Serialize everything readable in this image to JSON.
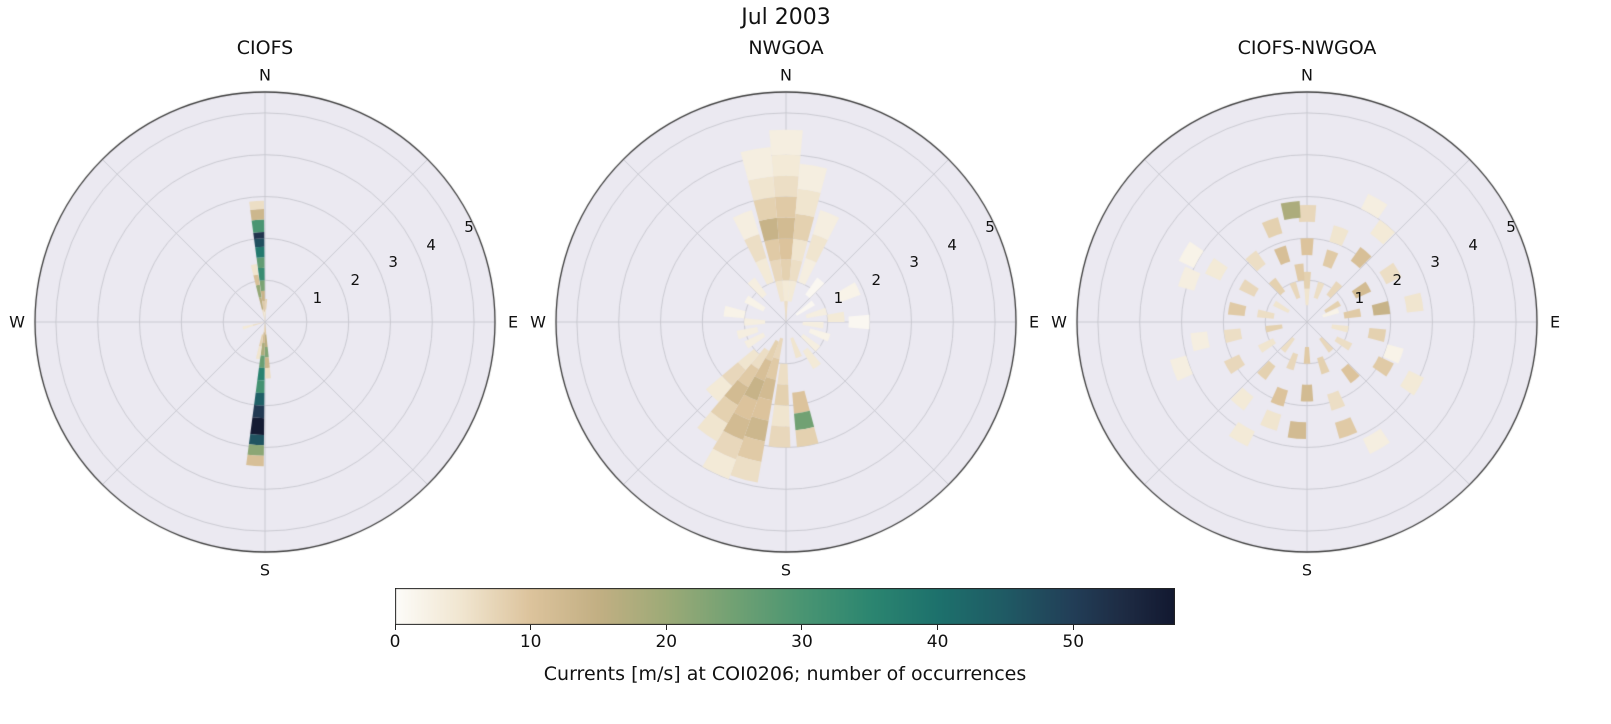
{
  "title": "Jul 2003",
  "axes_facecolor": "#ebe9f1",
  "grid_color": "#c6c6ce",
  "axes_edgecolor": "#3a3a3a",
  "colorbar": {
    "label": "Currents [m/s] at COI0206; number of occurrences",
    "ticks": [
      0,
      10,
      20,
      30,
      40,
      50
    ],
    "vmin": 0,
    "vmax": 57.5,
    "colormap_stops": [
      [
        0,
        "#fdfcf9"
      ],
      [
        5,
        "#f0e5cf"
      ],
      [
        10,
        "#dcc39c"
      ],
      [
        15,
        "#c2af83"
      ],
      [
        20,
        "#9daa77"
      ],
      [
        25,
        "#71a173"
      ],
      [
        30,
        "#4a9572"
      ],
      [
        35,
        "#2c8670"
      ],
      [
        40,
        "#1d716c"
      ],
      [
        45,
        "#1f5a64"
      ],
      [
        50,
        "#223e57"
      ],
      [
        54,
        "#1d2a42"
      ],
      [
        57.5,
        "#121830"
      ]
    ]
  },
  "chart_data": [
    {
      "type": "heatmap",
      "projection": "polar",
      "subtype": "current-rose-histogram",
      "title": "CIOFS",
      "compass_labels": [
        "N",
        "E",
        "S",
        "W"
      ],
      "radial_ticks": [
        1,
        2,
        3,
        4,
        5
      ],
      "rmax": 5.5,
      "cell_format": [
        "direction_deg_from_north",
        "width_deg",
        "r0_speed",
        "r1_speed",
        "occurrences"
      ],
      "cells": [
        [
          356,
          7,
          0,
          0.25,
          4
        ],
        [
          356,
          7,
          0.25,
          0.5,
          9
        ],
        [
          356,
          7,
          0.5,
          0.75,
          14
        ],
        [
          356,
          7,
          0.75,
          1.0,
          24
        ],
        [
          356,
          7,
          1.0,
          1.3,
          33
        ],
        [
          356,
          7,
          1.3,
          1.55,
          27
        ],
        [
          356,
          7,
          1.55,
          1.8,
          38
        ],
        [
          356,
          7,
          1.8,
          2.0,
          47
        ],
        [
          356,
          7,
          2.0,
          2.15,
          52
        ],
        [
          356,
          7,
          2.15,
          2.45,
          30
        ],
        [
          356,
          7,
          2.45,
          2.7,
          13
        ],
        [
          356,
          7,
          2.7,
          2.9,
          6
        ],
        [
          349,
          6,
          0,
          0.3,
          6
        ],
        [
          349,
          6,
          0.3,
          0.6,
          16
        ],
        [
          349,
          6,
          0.6,
          0.9,
          21
        ],
        [
          349,
          6,
          0.9,
          1.15,
          11
        ],
        [
          349,
          6,
          1.15,
          1.4,
          5
        ],
        [
          3,
          5,
          0,
          0.3,
          5
        ],
        [
          3,
          5,
          0.3,
          0.55,
          8
        ],
        [
          184,
          7,
          0,
          0.25,
          7
        ],
        [
          184,
          7,
          0.25,
          0.5,
          12
        ],
        [
          184,
          7,
          0.5,
          0.8,
          18
        ],
        [
          184,
          7,
          0.8,
          1.1,
          26
        ],
        [
          184,
          7,
          1.1,
          1.4,
          36
        ],
        [
          184,
          7,
          1.4,
          1.7,
          31
        ],
        [
          184,
          7,
          1.7,
          2.0,
          44
        ],
        [
          184,
          7,
          2.0,
          2.3,
          51
        ],
        [
          184,
          7,
          2.3,
          2.7,
          57
        ],
        [
          184,
          7,
          2.7,
          2.95,
          46
        ],
        [
          184,
          7,
          2.95,
          3.2,
          22
        ],
        [
          184,
          7,
          3.2,
          3.45,
          11
        ],
        [
          177,
          6,
          0,
          0.3,
          9
        ],
        [
          177,
          6,
          0.3,
          0.6,
          16
        ],
        [
          177,
          6,
          0.6,
          0.85,
          23
        ],
        [
          177,
          6,
          0.85,
          1.1,
          13
        ],
        [
          177,
          6,
          1.1,
          1.35,
          6
        ],
        [
          191,
          6,
          0.3,
          0.6,
          8
        ],
        [
          191,
          6,
          0.6,
          0.9,
          5
        ],
        [
          255,
          8,
          0,
          0.3,
          6
        ],
        [
          255,
          8,
          0.3,
          0.55,
          4
        ]
      ]
    },
    {
      "type": "heatmap",
      "projection": "polar",
      "subtype": "current-rose-histogram",
      "title": "NWGOA",
      "compass_labels": [
        "N",
        "E",
        "S",
        "W"
      ],
      "radial_ticks": [
        1,
        2,
        3,
        4,
        5
      ],
      "rmax": 5.5,
      "cell_format": [
        "direction_deg_from_north",
        "width_deg",
        "r0_speed",
        "r1_speed",
        "occurrences"
      ],
      "cells": [
        [
          0,
          10,
          0,
          0.5,
          6
        ],
        [
          0,
          10,
          0.5,
          1.0,
          4
        ],
        [
          0,
          10,
          1.0,
          1.5,
          8
        ],
        [
          0,
          10,
          1.5,
          2.0,
          10
        ],
        [
          0,
          10,
          2.0,
          2.5,
          12
        ],
        [
          0,
          10,
          2.5,
          3.0,
          9
        ],
        [
          0,
          10,
          3.0,
          3.5,
          6
        ],
        [
          0,
          10,
          3.5,
          4.0,
          4
        ],
        [
          0,
          10,
          4.0,
          4.6,
          3
        ],
        [
          350,
          10,
          0.5,
          1.0,
          5
        ],
        [
          350,
          10,
          1.0,
          1.5,
          7
        ],
        [
          350,
          10,
          1.5,
          2.0,
          9
        ],
        [
          350,
          10,
          2.0,
          2.5,
          14
        ],
        [
          350,
          10,
          2.5,
          3.0,
          8
        ],
        [
          350,
          10,
          3.0,
          3.5,
          5
        ],
        [
          350,
          10,
          3.5,
          4.2,
          3
        ],
        [
          10,
          10,
          0.5,
          1.0,
          4
        ],
        [
          10,
          10,
          1.0,
          1.5,
          6
        ],
        [
          10,
          10,
          1.5,
          2.0,
          5
        ],
        [
          10,
          10,
          2.0,
          2.6,
          8
        ],
        [
          10,
          10,
          2.6,
          3.2,
          5
        ],
        [
          10,
          10,
          3.2,
          3.8,
          3
        ],
        [
          338,
          10,
          1.0,
          1.6,
          4
        ],
        [
          338,
          10,
          1.6,
          2.2,
          6
        ],
        [
          338,
          10,
          2.2,
          2.8,
          3
        ],
        [
          22,
          10,
          1.0,
          1.6,
          3
        ],
        [
          22,
          10,
          1.6,
          2.2,
          5
        ],
        [
          22,
          10,
          2.2,
          2.8,
          3
        ],
        [
          75,
          10,
          0.5,
          1.0,
          3
        ],
        [
          85,
          10,
          1.0,
          1.4,
          4
        ],
        [
          95,
          10,
          0.4,
          0.9,
          3
        ],
        [
          65,
          10,
          1.4,
          1.9,
          2
        ],
        [
          110,
          10,
          0.6,
          1.1,
          2
        ],
        [
          55,
          10,
          0.3,
          0.8,
          1
        ],
        [
          90,
          10,
          1.5,
          2.0,
          1
        ],
        [
          40,
          10,
          0.8,
          1.3,
          1
        ],
        [
          130,
          10,
          0.5,
          1.0,
          3
        ],
        [
          145,
          10,
          0.8,
          1.3,
          4
        ],
        [
          160,
          10,
          0.4,
          0.9,
          5
        ],
        [
          170,
          10,
          1.7,
          2.2,
          10
        ],
        [
          170,
          10,
          2.2,
          2.6,
          25
        ],
        [
          170,
          10,
          2.6,
          3.0,
          8
        ],
        [
          183,
          10,
          1.0,
          1.5,
          6
        ],
        [
          183,
          10,
          1.5,
          2.0,
          8
        ],
        [
          183,
          10,
          2.0,
          2.5,
          5
        ],
        [
          183,
          10,
          2.5,
          3.0,
          7
        ],
        [
          195,
          10,
          0.4,
          0.9,
          7
        ],
        [
          195,
          10,
          0.9,
          1.4,
          9
        ],
        [
          195,
          10,
          1.4,
          1.9,
          12
        ],
        [
          195,
          10,
          1.9,
          2.4,
          10
        ],
        [
          195,
          10,
          2.4,
          2.9,
          13
        ],
        [
          195,
          10,
          2.9,
          3.4,
          9
        ],
        [
          195,
          10,
          3.4,
          3.9,
          6
        ],
        [
          205,
          10,
          0.5,
          1.0,
          8
        ],
        [
          205,
          10,
          1.0,
          1.5,
          11
        ],
        [
          205,
          10,
          1.5,
          2.0,
          14
        ],
        [
          205,
          10,
          2.0,
          2.5,
          10
        ],
        [
          205,
          10,
          2.5,
          3.0,
          12
        ],
        [
          205,
          10,
          3.0,
          3.5,
          7
        ],
        [
          205,
          10,
          3.5,
          4.0,
          4
        ],
        [
          215,
          10,
          0.8,
          1.3,
          6
        ],
        [
          215,
          10,
          1.3,
          1.8,
          9
        ],
        [
          215,
          10,
          1.8,
          2.3,
          12
        ],
        [
          215,
          10,
          2.3,
          2.8,
          8
        ],
        [
          215,
          10,
          2.8,
          3.3,
          5
        ],
        [
          225,
          10,
          1.0,
          1.5,
          5
        ],
        [
          225,
          10,
          1.5,
          2.0,
          7
        ],
        [
          225,
          10,
          2.0,
          2.5,
          4
        ],
        [
          240,
          10,
          0.6,
          1.1,
          3
        ],
        [
          255,
          10,
          0.7,
          1.2,
          3
        ],
        [
          270,
          10,
          0.5,
          1.0,
          3
        ],
        [
          280,
          10,
          1.0,
          1.5,
          2
        ],
        [
          300,
          10,
          0.6,
          1.1,
          2
        ],
        [
          320,
          10,
          0.8,
          1.3,
          3
        ]
      ]
    },
    {
      "type": "heatmap",
      "projection": "polar",
      "subtype": "current-rose-histogram",
      "title": "CIOFS-NWGOA",
      "compass_labels": [
        "N",
        "E",
        "S",
        "W"
      ],
      "radial_ticks": [
        1,
        2,
        3,
        4,
        5
      ],
      "rmax": 5.5,
      "cell_format": [
        "direction_deg_from_north",
        "width_deg",
        "r0_speed",
        "r1_speed",
        "occurrences"
      ],
      "cells": [
        [
          0,
          9,
          0.4,
          0.8,
          5
        ],
        [
          0,
          9,
          0.8,
          1.2,
          8
        ],
        [
          0,
          9,
          1.6,
          2.0,
          10
        ],
        [
          0,
          9,
          2.4,
          2.8,
          7
        ],
        [
          20,
          9,
          0.6,
          1.0,
          6
        ],
        [
          20,
          9,
          1.4,
          1.8,
          9
        ],
        [
          20,
          9,
          2.0,
          2.4,
          5
        ],
        [
          40,
          9,
          0.8,
          1.2,
          7
        ],
        [
          40,
          9,
          1.8,
          2.2,
          11
        ],
        [
          40,
          9,
          2.6,
          3.0,
          4
        ],
        [
          60,
          9,
          0.5,
          0.9,
          8
        ],
        [
          60,
          9,
          1.3,
          1.7,
          12
        ],
        [
          60,
          9,
          2.1,
          2.5,
          6
        ],
        [
          80,
          9,
          0.9,
          1.3,
          9
        ],
        [
          80,
          9,
          1.6,
          2.0,
          14
        ],
        [
          80,
          9,
          2.4,
          2.8,
          5
        ],
        [
          100,
          9,
          0.6,
          1.0,
          5
        ],
        [
          100,
          9,
          1.5,
          1.9,
          8
        ],
        [
          120,
          9,
          0.8,
          1.2,
          6
        ],
        [
          120,
          9,
          1.9,
          2.3,
          9
        ],
        [
          120,
          9,
          2.7,
          3.1,
          4
        ],
        [
          140,
          9,
          0.5,
          0.9,
          7
        ],
        [
          140,
          9,
          1.4,
          1.8,
          10
        ],
        [
          160,
          9,
          0.9,
          1.3,
          8
        ],
        [
          160,
          9,
          1.8,
          2.2,
          6
        ],
        [
          160,
          9,
          2.5,
          2.9,
          9
        ],
        [
          180,
          9,
          0.6,
          1.0,
          9
        ],
        [
          180,
          9,
          1.5,
          1.9,
          12
        ],
        [
          185,
          9,
          2.4,
          2.8,
          12
        ],
        [
          200,
          9,
          0.8,
          1.2,
          7
        ],
        [
          200,
          9,
          1.7,
          2.1,
          10
        ],
        [
          200,
          9,
          2.3,
          2.7,
          5
        ],
        [
          220,
          9,
          0.5,
          0.9,
          6
        ],
        [
          220,
          9,
          1.3,
          1.7,
          8
        ],
        [
          220,
          9,
          2.2,
          2.6,
          4
        ],
        [
          240,
          9,
          0.9,
          1.3,
          5
        ],
        [
          240,
          9,
          1.8,
          2.2,
          7
        ],
        [
          260,
          9,
          0.6,
          1.0,
          8
        ],
        [
          260,
          9,
          1.6,
          2.0,
          6
        ],
        [
          260,
          9,
          2.4,
          2.8,
          3
        ],
        [
          280,
          9,
          0.8,
          1.2,
          6
        ],
        [
          280,
          9,
          1.5,
          1.9,
          9
        ],
        [
          300,
          9,
          0.5,
          0.9,
          5
        ],
        [
          300,
          9,
          1.4,
          1.8,
          7
        ],
        [
          300,
          9,
          2.3,
          2.7,
          4
        ],
        [
          320,
          9,
          0.9,
          1.3,
          8
        ],
        [
          320,
          9,
          1.7,
          2.1,
          6
        ],
        [
          340,
          9,
          0.6,
          1.0,
          7
        ],
        [
          340,
          9,
          1.5,
          1.9,
          11
        ],
        [
          340,
          9,
          2.2,
          2.6,
          8
        ],
        [
          352,
          9,
          2.5,
          2.9,
          18
        ],
        [
          352,
          9,
          1.0,
          1.4,
          9
        ],
        [
          30,
          9,
          3.0,
          3.4,
          3
        ],
        [
          210,
          9,
          2.9,
          3.3,
          4
        ],
        [
          150,
          9,
          3.1,
          3.5,
          3
        ],
        [
          250,
          9,
          3.0,
          3.4,
          3
        ],
        [
          290,
          9,
          2.8,
          3.2,
          3
        ],
        [
          70,
          9,
          0.4,
          0.8,
          2
        ],
        [
          110,
          9,
          2.0,
          2.4,
          2
        ],
        [
          300,
          9,
          3.0,
          3.4,
          2
        ]
      ]
    }
  ]
}
